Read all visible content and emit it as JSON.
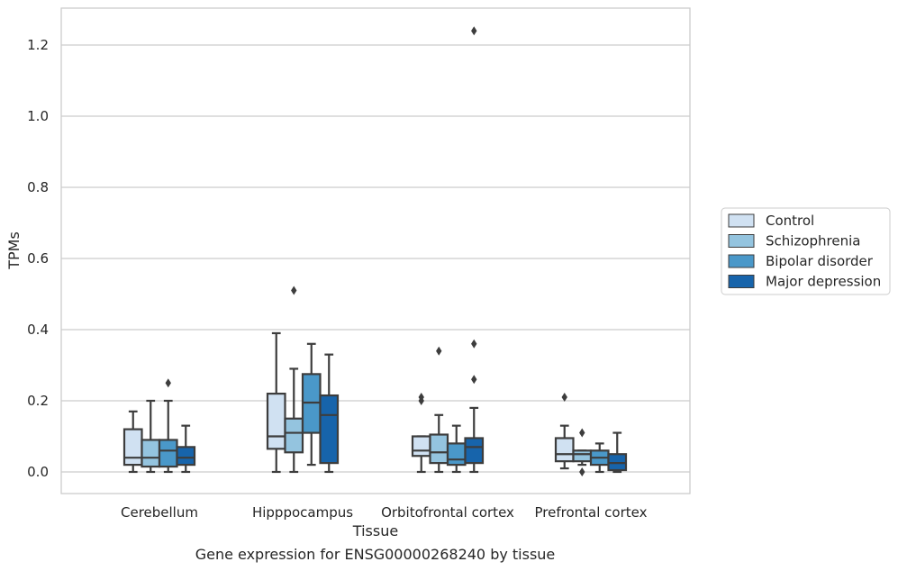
{
  "caption": "Gene expression for ENSG00000268240 by tissue",
  "chart_data": {
    "type": "box",
    "xlabel": "Tissue",
    "ylabel": "TPMs",
    "ylim": [
      -0.06,
      1.31
    ],
    "yticks": [
      0.0,
      0.2,
      0.4,
      0.6,
      0.8,
      1.0,
      1.2
    ],
    "ytick_labels": [
      "0.0",
      "0.2",
      "0.4",
      "0.6",
      "0.8",
      "1.0",
      "1.2"
    ],
    "grid": "horizontal",
    "legend_position": "right",
    "categories": [
      "Cerebellum",
      "Hipppocampus",
      "Orbitofrontal cortex",
      "Prefrontal cortex"
    ],
    "series": [
      {
        "name": "Control",
        "color": "#d0e1f2",
        "boxes": [
          {
            "whislo": 0.0,
            "q1": 0.02,
            "med": 0.04,
            "q3": 0.12,
            "whishi": 0.17,
            "fliers": []
          },
          {
            "whislo": 0.0,
            "q1": 0.065,
            "med": 0.1,
            "q3": 0.22,
            "whishi": 0.39,
            "fliers": []
          },
          {
            "whislo": 0.0,
            "q1": 0.045,
            "med": 0.06,
            "q3": 0.1,
            "whishi": 0.1,
            "fliers": [
              0.2,
              0.21
            ]
          },
          {
            "whislo": 0.01,
            "q1": 0.03,
            "med": 0.05,
            "q3": 0.095,
            "whishi": 0.13,
            "fliers": [
              0.21
            ]
          }
        ]
      },
      {
        "name": "Schizophrenia",
        "color": "#94c4df",
        "boxes": [
          {
            "whislo": 0.0,
            "q1": 0.015,
            "med": 0.04,
            "q3": 0.09,
            "whishi": 0.2,
            "fliers": []
          },
          {
            "whislo": 0.0,
            "q1": 0.055,
            "med": 0.11,
            "q3": 0.15,
            "whishi": 0.29,
            "fliers": [
              0.51
            ]
          },
          {
            "whislo": 0.0,
            "q1": 0.025,
            "med": 0.055,
            "q3": 0.105,
            "whishi": 0.16,
            "fliers": [
              0.34
            ]
          },
          {
            "whislo": 0.02,
            "q1": 0.03,
            "med": 0.05,
            "q3": 0.06,
            "whishi": 0.06,
            "fliers": [
              0.11,
              0.0
            ]
          }
        ]
      },
      {
        "name": "Bipolar disorder",
        "color": "#4a98c9",
        "boxes": [
          {
            "whislo": 0.0,
            "q1": 0.015,
            "med": 0.06,
            "q3": 0.09,
            "whishi": 0.2,
            "fliers": [
              0.25
            ]
          },
          {
            "whislo": 0.02,
            "q1": 0.11,
            "med": 0.195,
            "q3": 0.275,
            "whishi": 0.36,
            "fliers": []
          },
          {
            "whislo": 0.0,
            "q1": 0.02,
            "med": 0.035,
            "q3": 0.08,
            "whishi": 0.13,
            "fliers": []
          },
          {
            "whislo": 0.0,
            "q1": 0.02,
            "med": 0.04,
            "q3": 0.06,
            "whishi": 0.08,
            "fliers": []
          }
        ]
      },
      {
        "name": "Major depression",
        "color": "#1764ab",
        "boxes": [
          {
            "whislo": 0.0,
            "q1": 0.02,
            "med": 0.04,
            "q3": 0.07,
            "whishi": 0.13,
            "fliers": []
          },
          {
            "whislo": 0.0,
            "q1": 0.025,
            "med": 0.16,
            "q3": 0.215,
            "whishi": 0.33,
            "fliers": []
          },
          {
            "whislo": 0.0,
            "q1": 0.025,
            "med": 0.07,
            "q3": 0.095,
            "whishi": 0.18,
            "fliers": [
              0.26,
              0.36,
              1.24
            ]
          },
          {
            "whislo": 0.0,
            "q1": 0.005,
            "med": 0.025,
            "q3": 0.05,
            "whishi": 0.11,
            "fliers": []
          }
        ]
      }
    ]
  }
}
